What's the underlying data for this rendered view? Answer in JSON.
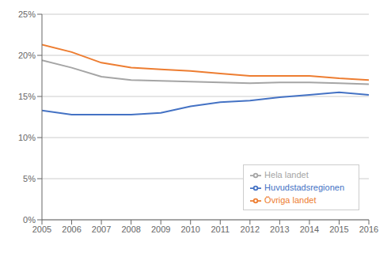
{
  "chart_data": {
    "type": "line",
    "x": [
      2005,
      2006,
      2007,
      2008,
      2009,
      2010,
      2011,
      2012,
      2013,
      2014,
      2015,
      2016
    ],
    "series": [
      {
        "name": "Huvudstadsregionen",
        "color": "#4472C4",
        "values": [
          0.133,
          0.128,
          0.128,
          0.128,
          0.13,
          0.138,
          0.143,
          0.145,
          0.149,
          0.152,
          0.155,
          0.152
        ]
      },
      {
        "name": "Övriga landet",
        "color": "#ED7D31",
        "values": [
          0.213,
          0.204,
          0.191,
          0.185,
          0.183,
          0.181,
          0.178,
          0.175,
          0.175,
          0.175,
          0.172,
          0.17
        ]
      },
      {
        "name": "Hela landet",
        "color": "#A5A5A5",
        "values": [
          0.194,
          0.185,
          0.174,
          0.17,
          0.169,
          0.168,
          0.167,
          0.166,
          0.167,
          0.167,
          0.166,
          0.165
        ]
      }
    ],
    "xlim": [
      2005,
      2016
    ],
    "xticks": [
      2005,
      2006,
      2007,
      2008,
      2009,
      2010,
      2011,
      2012,
      2013,
      2014,
      2015,
      2016
    ],
    "ylim": [
      0,
      0.25
    ],
    "yticks": [
      {
        "value": 0,
        "label": "0%"
      },
      {
        "value": 0.05,
        "label": "5%"
      },
      {
        "value": 0.1,
        "label": "10%"
      },
      {
        "value": 0.15,
        "label": "15%"
      },
      {
        "value": 0.2,
        "label": "20%"
      },
      {
        "value": 0.25,
        "label": "25%"
      }
    ],
    "grid": true,
    "legend": "lower right"
  }
}
